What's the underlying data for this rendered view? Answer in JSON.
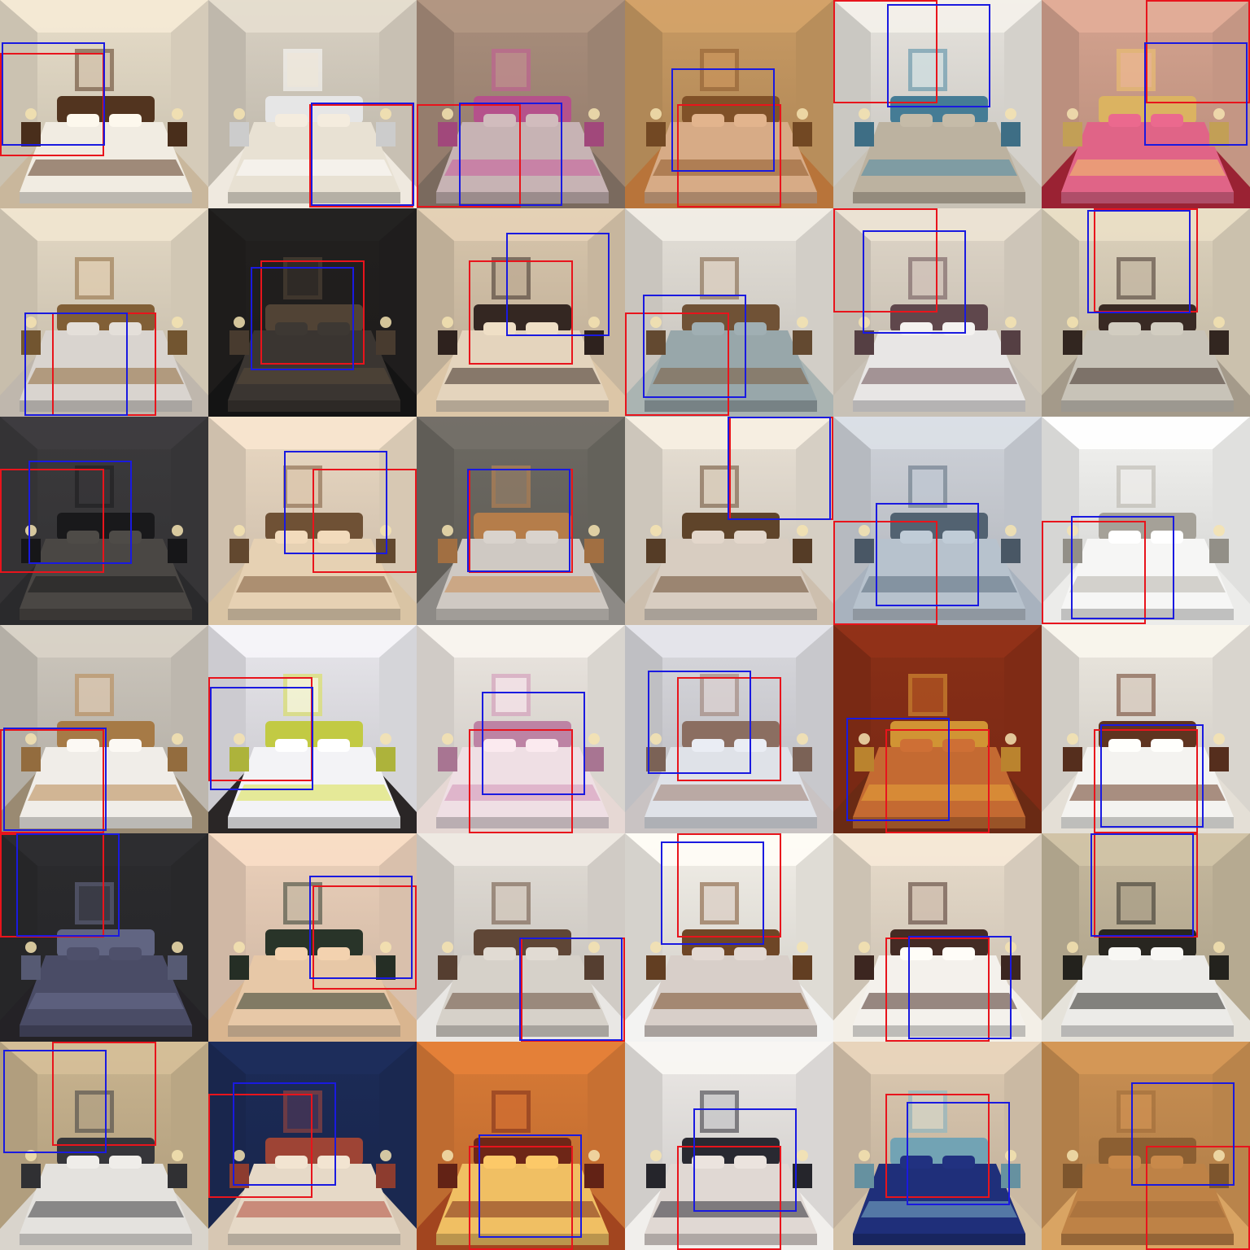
{
  "grid": {
    "rows": 6,
    "cols": 6
  },
  "box_colors": {
    "red": "#e8141c",
    "blue": "#1a1ae0"
  },
  "tiles": [
    {
      "row": 0,
      "col": 0,
      "palette": {
        "wall": "#e7ddc9",
        "floor": "#c9b79c",
        "bed": "#f1ece2",
        "accent": "#5b3a22"
      }
    },
    {
      "row": 0,
      "col": 1,
      "palette": {
        "wall": "#d9d1c3",
        "floor": "#efe9df",
        "bed": "#e8e1d3",
        "accent": "#ffffff"
      }
    },
    {
      "row": 0,
      "col": 2,
      "palette": {
        "wall": "#a98e7c",
        "floor": "#7a6a5e",
        "bed": "#c7b3b4",
        "accent": "#c95a9a"
      }
    },
    {
      "row": 0,
      "col": 3,
      "palette": {
        "wall": "#c89a63",
        "floor": "#b8743a",
        "bed": "#d7ab86",
        "accent": "#8e5a2c"
      }
    },
    {
      "row": 0,
      "col": 4,
      "palette": {
        "wall": "#e6e3dd",
        "floor": "#c8c2b6",
        "bed": "#bcb2a0",
        "accent": "#4d8aa6"
      }
    },
    {
      "row": 0,
      "col": 5,
      "palette": {
        "wall": "#d5a38f",
        "floor": "#9a2233",
        "bed": "#e06487",
        "accent": "#f3c76c"
      }
    },
    {
      "row": 1,
      "col": 0,
      "palette": {
        "wall": "#e3d8c4",
        "floor": "#bfb7ad",
        "bed": "#d9d4cf",
        "accent": "#8f6a3c"
      }
    },
    {
      "row": 1,
      "col": 1,
      "palette": {
        "wall": "#22201f",
        "floor": "#141414",
        "bed": "#3a3531",
        "accent": "#5a4a3b"
      }
    },
    {
      "row": 1,
      "col": 2,
      "palette": {
        "wall": "#d8c6ac",
        "floor": "#dcc6a7",
        "bed": "#e4d4bd",
        "accent": "#3a2b26"
      }
    },
    {
      "row": 1,
      "col": 3,
      "palette": {
        "wall": "#e4e0d8",
        "floor": "#aab4b2",
        "bed": "#98a7aa",
        "accent": "#7c5b3c"
      }
    },
    {
      "row": 1,
      "col": 4,
      "palette": {
        "wall": "#dfd6c8",
        "floor": "#c8c1b6",
        "bed": "#e8e6e5",
        "accent": "#6a4f54"
      }
    },
    {
      "row": 1,
      "col": 5,
      "palette": {
        "wall": "#ddd2bc",
        "floor": "#a49a8a",
        "bed": "#c8c3b8",
        "accent": "#3f2f28"
      }
    },
    {
      "row": 2,
      "col": 0,
      "palette": {
        "wall": "#3b3a3c",
        "floor": "#2a2a2c",
        "bed": "#4a4744",
        "accent": "#1c1c1e"
      }
    },
    {
      "row": 2,
      "col": 1,
      "palette": {
        "wall": "#ead9c3",
        "floor": "#d9c4a4",
        "bed": "#e6d1b3",
        "accent": "#7b5a3b"
      }
    },
    {
      "row": 2,
      "col": 2,
      "palette": {
        "wall": "#6d6a63",
        "floor": "#8d8a86",
        "bed": "#cfc9c3",
        "accent": "#c98b52"
      }
    },
    {
      "row": 2,
      "col": 3,
      "palette": {
        "wall": "#e9e1d5",
        "floor": "#cdbfae",
        "bed": "#d8cdc1",
        "accent": "#6a4b2f"
      }
    },
    {
      "row": 2,
      "col": 4,
      "palette": {
        "wall": "#cfd3da",
        "floor": "#a8b2be",
        "bed": "#b7c2cd",
        "accent": "#5b6d7e"
      }
    },
    {
      "row": 2,
      "col": 5,
      "palette": {
        "wall": "#f3f3f1",
        "floor": "#ececea",
        "bed": "#f6f6f5",
        "accent": "#b7b3a9"
      }
    },
    {
      "row": 3,
      "col": 0,
      "palette": {
        "wall": "#cdc7bd",
        "floor": "#9a8a72",
        "bed": "#f0ede8",
        "accent": "#b8874e"
      }
    },
    {
      "row": 3,
      "col": 1,
      "palette": {
        "wall": "#e8e7ec",
        "floor": "#2a2626",
        "bed": "#f3f3f6",
        "accent": "#d8e04a"
      }
    },
    {
      "row": 3,
      "col": 2,
      "palette": {
        "wall": "#ece7e1",
        "floor": "#e6d8d4",
        "bed": "#efdfe4",
        "accent": "#d292b6"
      }
    },
    {
      "row": 3,
      "col": 3,
      "palette": {
        "wall": "#d9d9de",
        "floor": "#c9c3c3",
        "bed": "#dfe2e8",
        "accent": "#9a7a6c"
      }
    },
    {
      "row": 3,
      "col": 4,
      "palette": {
        "wall": "#8a2f17",
        "floor": "#6a2a14",
        "bed": "#c46a32",
        "accent": "#e8a43a"
      }
    },
    {
      "row": 3,
      "col": 5,
      "palette": {
        "wall": "#ece8e0",
        "floor": "#e4dfd6",
        "bed": "#f4f3f0",
        "accent": "#6a3a24"
      }
    },
    {
      "row": 4,
      "col": 0,
      "palette": {
        "wall": "#2b2b2e",
        "floor": "#242226",
        "bed": "#4a4c66",
        "accent": "#6c7090"
      }
    },
    {
      "row": 4,
      "col": 1,
      "palette": {
        "wall": "#ecd1bb",
        "floor": "#d9b58f",
        "bed": "#e7c8a7",
        "accent": "#2e3a2e"
      }
    },
    {
      "row": 4,
      "col": 2,
      "palette": {
        "wall": "#e2ddd6",
        "floor": "#e9e7e4",
        "bed": "#d6d1c9",
        "accent": "#6a4e3c"
      }
    },
    {
      "row": 4,
      "col": 3,
      "palette": {
        "wall": "#f2efe8",
        "floor": "#f3f3f2",
        "bed": "#d8cfc9",
        "accent": "#7a4e2a"
      }
    },
    {
      "row": 4,
      "col": 4,
      "palette": {
        "wall": "#e8dccb",
        "floor": "#f3efe7",
        "bed": "#f4f1ec",
        "accent": "#4b3028"
      }
    },
    {
      "row": 4,
      "col": 5,
      "palette": {
        "wall": "#c6b99e",
        "floor": "#e5e2da",
        "bed": "#ecebe8",
        "accent": "#2c2a24"
      }
    },
    {
      "row": 5,
      "col": 0,
      "palette": {
        "wall": "#c9b48f",
        "floor": "#d9d4cc",
        "bed": "#e4e2de",
        "accent": "#3c3c40"
      }
    },
    {
      "row": 5,
      "col": 1,
      "palette": {
        "wall": "#1c2b57",
        "floor": "#d7c7b3",
        "bed": "#e6d9c7",
        "accent": "#b04b3b"
      }
    },
    {
      "row": 5,
      "col": 2,
      "palette": {
        "wall": "#d87a36",
        "floor": "#a2451f",
        "bed": "#f0bf63",
        "accent": "#7a2a1a"
      }
    },
    {
      "row": 5,
      "col": 3,
      "palette": {
        "wall": "#ece9e6",
        "floor": "#f1efec",
        "bed": "#e0d8d3",
        "accent": "#2e2e36"
      }
    },
    {
      "row": 5,
      "col": 4,
      "palette": {
        "wall": "#dcc9b1",
        "floor": "#d2c1a7",
        "bed": "#1f2f7a",
        "accent": "#7fb5c8"
      }
    },
    {
      "row": 5,
      "col": 5,
      "palette": {
        "wall": "#c98f52",
        "floor": "#d9a463",
        "bed": "#be8246",
        "accent": "#9c6a38"
      }
    }
  ]
}
